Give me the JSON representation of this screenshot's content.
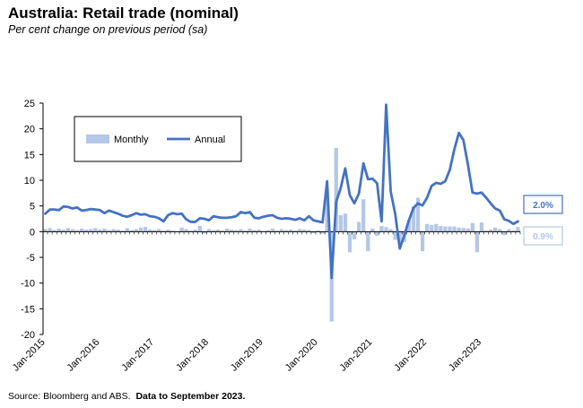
{
  "title": "Australia: Retail trade (nominal)",
  "subtitle": "Per cent change on previous period (sa)",
  "source": "Source: Bloomberg and ABS.",
  "source_note": "Data to September 2023.",
  "chart_data": {
    "type": "bar+line",
    "x_start": "Jan-2015",
    "x_end": "Sep-2023",
    "frequency": "monthly",
    "x_tick_labels": [
      "Jan-2015",
      "Jan-2016",
      "Jan-2017",
      "Jan-2018",
      "Jan-2019",
      "Jan-2020",
      "Jan-2021",
      "Jan-2022",
      "Jan-2023"
    ],
    "ylim": [
      -20,
      25
    ],
    "y_ticks": [
      25,
      20,
      15,
      10,
      5,
      0,
      -5,
      -10,
      -15,
      -20
    ],
    "grid": false,
    "legend": "top-left",
    "series": [
      {
        "name": "Monthly",
        "type": "bar",
        "color": "#b4c7e7",
        "values": [
          0.5,
          0.7,
          0.3,
          0.6,
          0.4,
          0.7,
          0.5,
          0.3,
          0.6,
          0.4,
          0.5,
          0.7,
          0.4,
          0.6,
          0.3,
          0.5,
          0.4,
          0.2,
          0.7,
          0.3,
          0.5,
          0.8,
          0.9,
          0.4,
          0.3,
          0.5,
          0.2,
          0.4,
          0.2,
          -0.1,
          0.8,
          0.5,
          0.2,
          0.4,
          1.1,
          -0.4,
          0.5,
          0.3,
          0.4,
          0.2,
          0.6,
          0.4,
          0.3,
          0.5,
          0.2,
          0.6,
          0.3,
          0.4,
          0.1,
          0.3,
          0.6,
          0.2,
          0.5,
          0.3,
          0.4,
          0.2,
          0.5,
          0.4,
          0.3,
          -0.3,
          0.2,
          -0.4,
          8.5,
          -17.5,
          16.3,
          3.2,
          3.5,
          -4.0,
          -1.5,
          1.9,
          6.3,
          -3.8,
          0.6,
          -0.8,
          1.1,
          0.9,
          0.5,
          -1.6,
          -2.4,
          -2.0,
          2.3,
          4.9,
          6.6,
          -3.8,
          1.5,
          1.3,
          1.5,
          1.1,
          1.0,
          1.0,
          1.0,
          0.8,
          0.7,
          0.6,
          1.7,
          -4.0,
          1.8,
          0.2,
          0.4,
          0.8,
          0.5,
          -0.7,
          0.5,
          0.2,
          0.9
        ]
      },
      {
        "name": "Annual",
        "type": "line",
        "color": "#4472c4",
        "values": [
          3.5,
          4.3,
          4.3,
          4.2,
          4.9,
          4.8,
          4.5,
          4.7,
          4.1,
          4.2,
          4.4,
          4.3,
          4.2,
          3.6,
          4.1,
          3.8,
          3.5,
          3.1,
          2.9,
          3.2,
          3.6,
          3.3,
          3.4,
          3.0,
          2.9,
          2.6,
          2.0,
          3.2,
          3.6,
          3.4,
          3.5,
          2.4,
          1.9,
          1.9,
          2.6,
          2.5,
          2.2,
          3.0,
          2.8,
          2.7,
          2.7,
          2.8,
          3.0,
          3.8,
          3.6,
          3.8,
          2.7,
          2.6,
          2.9,
          3.1,
          3.2,
          2.7,
          2.5,
          2.6,
          2.5,
          2.3,
          2.6,
          2.2,
          3.0,
          2.2,
          2.0,
          1.8,
          9.8,
          -9.0,
          5.8,
          8.5,
          12.3,
          7.1,
          5.5,
          7.4,
          13.3,
          10.2,
          10.3,
          9.4,
          2.0,
          24.7,
          7.8,
          3.4,
          -3.3,
          -0.7,
          2.2,
          4.6,
          5.5,
          5.1,
          6.6,
          8.9,
          9.5,
          9.3,
          9.8,
          12.0,
          16.0,
          19.2,
          17.8,
          13.0,
          7.6,
          7.4,
          7.6,
          6.6,
          5.5,
          4.5,
          4.1,
          2.4,
          2.1,
          1.5,
          2.0
        ]
      }
    ],
    "annotations": [
      {
        "label": "2.0%",
        "series": "Annual",
        "style": "box"
      },
      {
        "label": "0.9%",
        "series": "Monthly",
        "style": "box"
      }
    ]
  }
}
